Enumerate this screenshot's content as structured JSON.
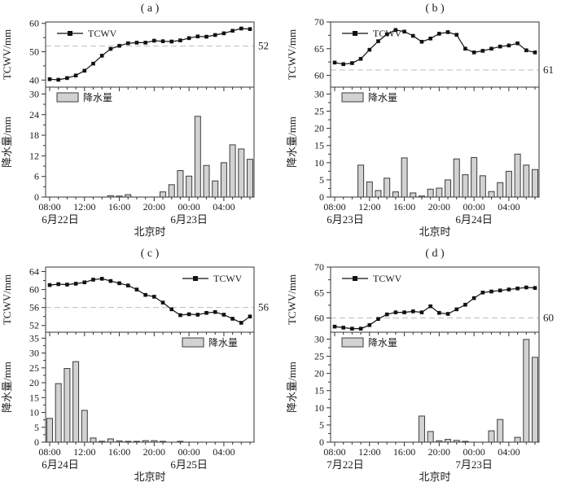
{
  "colors": {
    "bar_fill": "#d2d2d2",
    "bar_stroke": "#3c3c3c",
    "line": "#111111",
    "ref_dash": "#bdbdbd",
    "axis": "#333333",
    "text": "#1a1a1a"
  },
  "x_axis": {
    "tick_labels": [
      "08:00",
      "12:00",
      "16:00",
      "20:00",
      "00:00",
      "04:00"
    ],
    "tick_hours": [
      0,
      4,
      8,
      12,
      16,
      20
    ],
    "n_hours": 24
  },
  "chart_data": [
    {
      "panel_label": "( a )",
      "line": {
        "type": "line",
        "legend": "TCWV",
        "ylabel": "TCWV/mm",
        "yticks": [
          40,
          50,
          60
        ],
        "ylim": [
          37.5,
          60.5
        ],
        "ref_value": 52,
        "ref_label": "52",
        "legend_pos": "left",
        "values": [
          40.3,
          40.1,
          40.7,
          41.6,
          43.3,
          45.8,
          48.6,
          51.0,
          52.1,
          53.0,
          53.2,
          53.2,
          53.9,
          53.7,
          53.6,
          54.0,
          54.8,
          55.4,
          55.3,
          55.9,
          56.5,
          57.4,
          58.2,
          58.0
        ]
      },
      "bars": {
        "type": "bar",
        "legend": "降水量",
        "ylabel": "降水量/mm",
        "yticks": [
          0,
          6,
          12,
          18,
          24,
          30
        ],
        "ymax": 32,
        "legend_pos": "left",
        "values": [
          0,
          0,
          0,
          0,
          0,
          0,
          0,
          0.4,
          0.3,
          0.7,
          0,
          0,
          0,
          1.5,
          3.6,
          7.7,
          6.1,
          23.5,
          9.2,
          4.7,
          10,
          15.2,
          14,
          11
        ]
      },
      "x": {
        "date_left": "6月22日",
        "date_right": "6月23日",
        "xlabel": "北京时"
      }
    },
    {
      "panel_label": "( b )",
      "line": {
        "type": "line",
        "legend": "TCWV",
        "ylabel": "TCWV/mm",
        "yticks": [
          60,
          65,
          70
        ],
        "ylim": [
          57.8,
          70
        ],
        "ref_value": 61,
        "ref_label": "61",
        "legend_pos": "left",
        "values": [
          62.4,
          62.1,
          62.3,
          63.1,
          64.8,
          66.4,
          67.7,
          68.5,
          68.2,
          67.4,
          66.3,
          66.9,
          67.8,
          68.1,
          67.6,
          65.0,
          64.3,
          64.6,
          65.0,
          65.4,
          65.6,
          66.0,
          64.7,
          64.3
        ]
      },
      "bars": {
        "type": "bar",
        "legend": "降水量",
        "ylabel": "降水量/mm",
        "yticks": [
          0,
          5,
          10,
          15,
          20,
          25,
          30
        ],
        "ymax": 32,
        "legend_pos": "left",
        "values": [
          0,
          0,
          0,
          9.3,
          4.4,
          1.9,
          5.5,
          1.5,
          11.4,
          1.2,
          0.3,
          2.3,
          2.6,
          5.0,
          11.1,
          6.5,
          11.5,
          6.2,
          1.6,
          4.2,
          7.5,
          12.5,
          9.3,
          8.0
        ]
      },
      "x": {
        "date_left": "6月23日",
        "date_right": "6月24日",
        "xlabel": "北京时"
      }
    },
    {
      "panel_label": "( c )",
      "line": {
        "type": "line",
        "legend": "TCWV",
        "ylabel": "TCWV/mm",
        "yticks": [
          52,
          56,
          60,
          64
        ],
        "ylim": [
          50.5,
          65
        ],
        "ref_value": 56,
        "ref_label": "56",
        "legend_pos": "right",
        "values": [
          61.0,
          61.2,
          61.1,
          61.3,
          61.6,
          62.2,
          62.4,
          61.9,
          61.4,
          60.9,
          60.0,
          58.8,
          58.4,
          57.1,
          55.6,
          54.3,
          54.5,
          54.4,
          54.8,
          55.0,
          54.4,
          53.5,
          52.6,
          54.0
        ]
      },
      "bars": {
        "type": "bar",
        "legend": "降水量",
        "ylabel": "降水量/mm",
        "yticks": [
          0,
          5,
          10,
          15,
          20,
          25,
          30,
          35
        ],
        "ymax": 37,
        "legend_pos": "right",
        "values": [
          8.0,
          19.7,
          24.8,
          27.1,
          10.7,
          1.4,
          0.3,
          1.1,
          0.4,
          0.1,
          0.2,
          0.5,
          0.5,
          0.2,
          0,
          0.2,
          0,
          0,
          0,
          0,
          0,
          0,
          0,
          0
        ]
      },
      "x": {
        "date_left": "6月24日",
        "date_right": "6月25日",
        "xlabel": "北京时"
      }
    },
    {
      "panel_label": "( d )",
      "line": {
        "type": "line",
        "legend": "TCWV",
        "ylabel": "TCWV/mm",
        "yticks": [
          60,
          65,
          70
        ],
        "ylim": [
          57.2,
          70
        ],
        "ref_value": 60,
        "ref_label": "60",
        "legend_pos": "left",
        "values": [
          58.3,
          58.1,
          57.9,
          57.9,
          58.6,
          59.8,
          60.7,
          61.1,
          61.1,
          61.3,
          61.1,
          62.3,
          61.0,
          60.8,
          61.7,
          62.6,
          63.9,
          65.0,
          65.2,
          65.4,
          65.6,
          65.8,
          66.0,
          65.9
        ]
      },
      "bars": {
        "type": "bar",
        "legend": "降水量",
        "ylabel": "降水量/mm",
        "yticks": [
          0,
          5,
          10,
          15,
          20,
          25,
          30
        ],
        "ymax": 32,
        "legend_pos": "left",
        "values": [
          0,
          0,
          0,
          0,
          0,
          0,
          0,
          0,
          0,
          0,
          7.6,
          3.1,
          0.4,
          0.8,
          0.5,
          0.1,
          0,
          0,
          3.3,
          6.6,
          0,
          1.4,
          29.9,
          24.7
        ]
      },
      "x": {
        "date_left": "7月22日",
        "date_right": "7月23日",
        "xlabel": "北京时"
      }
    }
  ]
}
